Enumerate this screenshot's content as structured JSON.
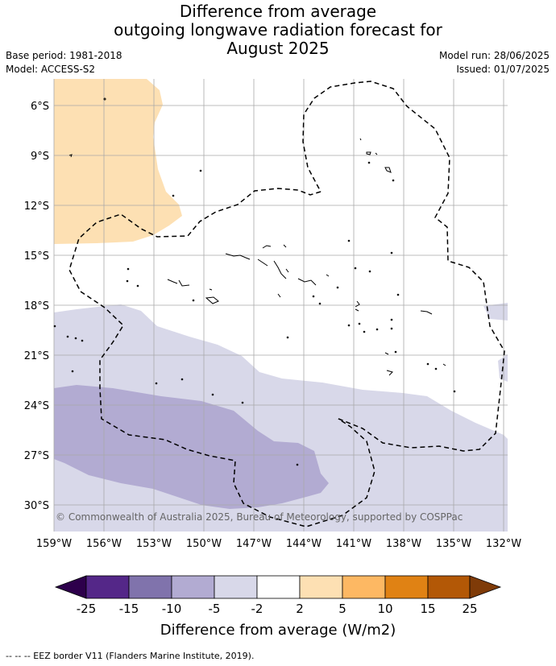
{
  "title": {
    "line1": "Difference from average",
    "line2": "outgoing longwave radiation forecast for",
    "line3": "August 2025"
  },
  "meta": {
    "base_period": "Base period: 1981-2018",
    "model": "Model: ACCESS-S2",
    "model_run": "Model run: 28/06/2025",
    "issued": "Issued: 01/07/2025"
  },
  "map": {
    "lat_labels": [
      "6°S",
      "9°S",
      "12°S",
      "15°S",
      "18°S",
      "21°S",
      "24°S",
      "27°S",
      "30°S"
    ],
    "lon_labels": [
      "159°W",
      "156°W",
      "153°W",
      "150°W",
      "147°W",
      "144°W",
      "141°W",
      "138°W",
      "135°W",
      "132°W"
    ],
    "copyright": "© Commonwealth of Australia 2025, Bureau of Meteorology, supported by COSPPac",
    "colors": {
      "pos_2_5": "#fde0b3",
      "neg_2_5": "#d8d8e9",
      "neg_5_10": "#b2abd2",
      "neg_10_15": "#8073ac"
    }
  },
  "colorbar": {
    "ticks": [
      "-25",
      "-15",
      "-10",
      "-5",
      "-2",
      "2",
      "5",
      "10",
      "15",
      "25"
    ],
    "colors": [
      "#2d004b",
      "#542788",
      "#8073ac",
      "#b2abd2",
      "#d8d8e9",
      "#ffffff",
      "#fde0b3",
      "#fdb863",
      "#e08214",
      "#b35806",
      "#7f3b08"
    ],
    "label": "Difference from average (W/m2)"
  },
  "footnote": "--  --  -- EEZ border V11 (Flanders Marine Institute, 2019)."
}
